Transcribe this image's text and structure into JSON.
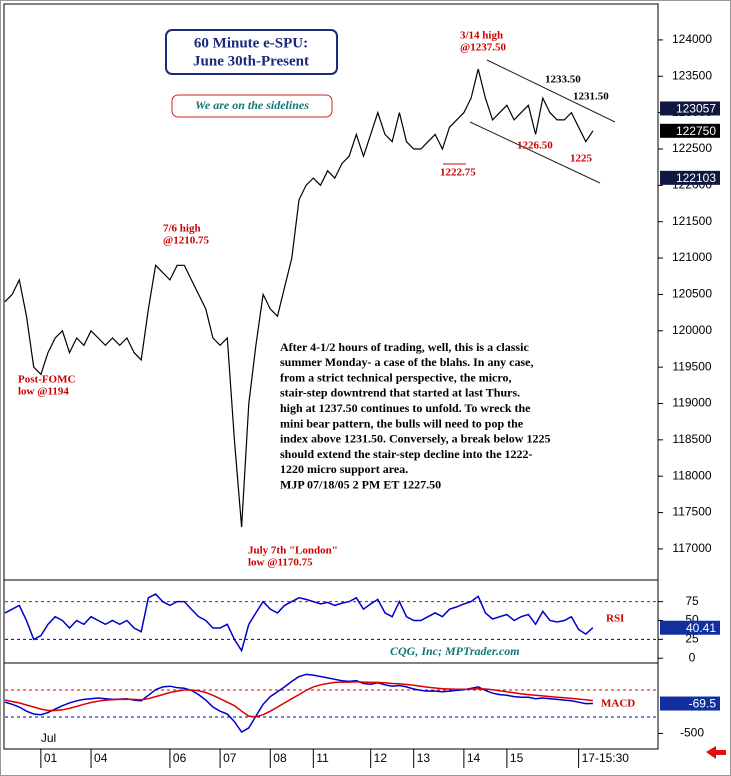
{
  "chart_data": [
    {
      "type": "line",
      "title": "60 Minute e-SPU:",
      "subtitle": "June 30th-Present",
      "note": "We are on the sidelines",
      "month_label": "Jul",
      "categories": [
        null,
        null,
        null,
        null,
        null,
        "01",
        null,
        null,
        null,
        null,
        null,
        null,
        "04",
        null,
        null,
        null,
        null,
        null,
        null,
        null,
        null,
        null,
        null,
        "06",
        null,
        null,
        null,
        null,
        null,
        null,
        "07",
        null,
        null,
        null,
        null,
        null,
        null,
        "08",
        null,
        null,
        null,
        null,
        null,
        "11",
        null,
        null,
        null,
        null,
        null,
        null,
        null,
        "12",
        null,
        null,
        null,
        null,
        null,
        "13",
        null,
        null,
        null,
        null,
        null,
        null,
        "14",
        null,
        null,
        null,
        null,
        null,
        "15",
        null,
        null,
        null,
        null,
        null,
        null,
        null,
        null,
        null,
        "17-15:30",
        null,
        null
      ],
      "series": [
        {
          "color": "#000000",
          "values": [
            120400,
            120500,
            120700,
            120200,
            119500,
            119400,
            119700,
            119900,
            120000,
            119700,
            119900,
            119800,
            120000,
            119900,
            119800,
            119900,
            119800,
            119900,
            119700,
            119600,
            120300,
            120900,
            120800,
            120700,
            120900,
            120900,
            120700,
            120500,
            120300,
            119900,
            119800,
            119900,
            118500,
            117300,
            119000,
            119800,
            120500,
            120300,
            120200,
            120600,
            121000,
            121800,
            122000,
            122100,
            122000,
            122200,
            122100,
            122300,
            122400,
            122700,
            122400,
            122700,
            123000,
            122700,
            122600,
            123000,
            122600,
            122500,
            122500,
            122600,
            122700,
            122500,
            122800,
            122900,
            123000,
            123200,
            123600,
            123200,
            122900,
            123000,
            123100,
            122900,
            123000,
            123100,
            122700,
            123200,
            123000,
            122900,
            122900,
            123000,
            122800,
            122600,
            122750
          ]
        }
      ],
      "ylim": [
        116600,
        124480
      ],
      "yticks": [
        117000,
        117500,
        118000,
        118500,
        119000,
        119500,
        120000,
        120500,
        121000,
        121500,
        122000,
        122500,
        123000,
        123500,
        124000
      ],
      "price_tags": [
        123057,
        122750,
        122103
      ],
      "annotations": [
        {
          "lines": [
            "3/14 high",
            "@1237.50"
          ]
        },
        {
          "lines": [
            "1233.50"
          ]
        },
        {
          "lines": [
            "1231.50"
          ]
        },
        {
          "lines": [
            "1226.50"
          ]
        },
        {
          "lines": [
            "1225"
          ]
        },
        {
          "lines": [
            "1222.75"
          ]
        },
        {
          "lines": [
            "7/6 high",
            " @1210.75"
          ]
        },
        {
          "lines": [
            "Post-FOMC",
            "low @1194"
          ]
        },
        {
          "lines": [
            "July 7th \"London\"",
            "low @1170.75"
          ]
        }
      ],
      "commentary": [
        "After 4-1/2 hours of trading, well, this is a classic",
        "summer Monday- a case of the blahs. In any case,",
        "from a strict technical perspective, the micro,",
        "stair-step downtrend that started at last Thurs.",
        "high at 1237.50 continues to unfold. To wreck the",
        "mini bear pattern, the bulls will need to pop the",
        "index above 1231.50. Conversely, a break below 1225",
        "should extend the stair-step decline into the 1222-",
        "1220 micro support area.",
        "MJP 07/18/05 2 PM ET 1227.50"
      ]
    },
    {
      "type": "line",
      "title": "RSI",
      "credit": "CQG, Inc; MPTrader.com",
      "series": [
        {
          "color": "#0000cc",
          "values": [
            60,
            65,
            70,
            50,
            25,
            30,
            45,
            55,
            50,
            40,
            50,
            45,
            55,
            50,
            45,
            50,
            45,
            50,
            40,
            35,
            80,
            85,
            75,
            70,
            75,
            75,
            65,
            55,
            50,
            40,
            40,
            45,
            25,
            10,
            45,
            60,
            75,
            65,
            60,
            70,
            75,
            80,
            78,
            75,
            72,
            74,
            70,
            73,
            75,
            80,
            65,
            72,
            78,
            60,
            55,
            75,
            55,
            50,
            50,
            55,
            60,
            55,
            65,
            68,
            72,
            75,
            82,
            60,
            52,
            55,
            58,
            50,
            55,
            58,
            45,
            62,
            50,
            48,
            50,
            55,
            38,
            32,
            40.41
          ]
        }
      ],
      "ylim": [
        -5,
        101
      ],
      "yticks": [
        0,
        25,
        50,
        75
      ],
      "ref_lines": [
        {
          "value": 75,
          "color": "#dd0000"
        },
        {
          "value": 25,
          "color": "#0000aa"
        }
      ],
      "price_tags": [
        40.41
      ]
    },
    {
      "type": "line",
      "title": "MACD",
      "series": [
        {
          "color": "#0000cc",
          "values": [
            -50,
            -80,
            -120,
            -180,
            -220,
            -230,
            -200,
            -150,
            -100,
            -60,
            -30,
            -10,
            0,
            10,
            0,
            -10,
            -5,
            0,
            -20,
            -30,
            50,
            130,
            170,
            180,
            160,
            150,
            120,
            60,
            -20,
            -120,
            -180,
            -220,
            -330,
            -480,
            -420,
            -250,
            -80,
            30,
            100,
            170,
            250,
            320,
            350,
            340,
            320,
            300,
            280,
            260,
            250,
            260,
            220,
            210,
            230,
            200,
            180,
            190,
            170,
            140,
            120,
            110,
            110,
            100,
            110,
            120,
            130,
            150,
            170,
            120,
            80,
            60,
            50,
            30,
            20,
            20,
            0,
            10,
            0,
            -10,
            -20,
            -30,
            -50,
            -70,
            -69.5
          ]
        },
        {
          "color": "#dd0000",
          "values": [
            -20,
            -40,
            -60,
            -90,
            -120,
            -150,
            -170,
            -170,
            -160,
            -140,
            -110,
            -80,
            -55,
            -35,
            -20,
            -15,
            -10,
            -8,
            -10,
            -15,
            0,
            30,
            60,
            90,
            110,
            125,
            125,
            115,
            90,
            50,
            0,
            -50,
            -100,
            -180,
            -250,
            -260,
            -230,
            -180,
            -120,
            -60,
            0,
            60,
            120,
            170,
            200,
            220,
            235,
            240,
            240,
            245,
            240,
            235,
            235,
            230,
            220,
            215,
            205,
            195,
            180,
            165,
            155,
            145,
            140,
            137,
            136,
            138,
            145,
            140,
            130,
            115,
            100,
            85,
            70,
            60,
            50,
            40,
            30,
            22,
            14,
            5,
            -5,
            -15,
            -25
          ]
        }
      ],
      "ylim": [
        -667,
        486
      ],
      "yticks": [
        -500
      ],
      "ref_lines": [
        {
          "value": 125,
          "color": "#dd0000"
        },
        {
          "value": -264,
          "color": "#0000aa"
        }
      ],
      "price_tags": [
        -69.5
      ]
    }
  ]
}
